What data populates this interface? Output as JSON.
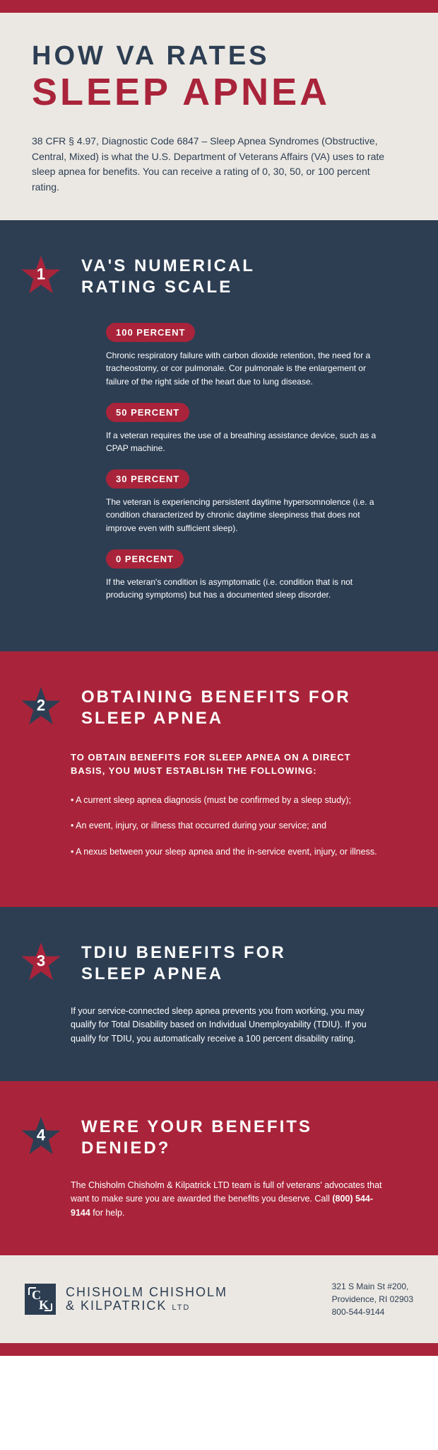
{
  "colors": {
    "navy": "#2d3e53",
    "red": "#a9243a",
    "cream": "#ebe8e3",
    "white": "#ffffff"
  },
  "typography": {
    "heading_family": "Arial",
    "body_family": "Century Gothic",
    "title1_size": 38,
    "title2_size": 54
  },
  "header": {
    "line1": "HOW VA RATES",
    "line2": "SLEEP APNEA",
    "intro": "38 CFR § 4.97, Diagnostic Code 6847 – Sleep Apnea Syndromes (Obstructive, Central, Mixed) is what the U.S. Department of Veterans Affairs (VA) uses to rate sleep apnea for benefits. You can receive a rating of 0, 30, 50, or 100 percent rating."
  },
  "sections": [
    {
      "num": "1",
      "bg": "navy",
      "star_color": "#a9243a",
      "title": "VA'S NUMERICAL RATING SCALE",
      "ratings": [
        {
          "label": "100 PERCENT",
          "desc": "Chronic respiratory failure with carbon dioxide retention, the need for a tracheostomy, or cor pulmonale. Cor pulmonale is the enlargement or failure of the right side of the heart due to lung disease."
        },
        {
          "label": "50 PERCENT",
          "desc": "If a veteran requires the use of a breathing assistance device, such as a CPAP machine."
        },
        {
          "label": "30 PERCENT",
          "desc": "The veteran is experiencing persistent daytime hypersomnolence (i.e. a condition characterized by chronic daytime sleepiness that does not improve even with sufficient sleep)."
        },
        {
          "label": "0 PERCENT",
          "desc": "If the veteran's condition is asymptomatic (i.e. condition that is not producing symptoms) but has a documented sleep disorder."
        }
      ]
    },
    {
      "num": "2",
      "bg": "red",
      "star_color": "#2d3e53",
      "title": "OBTAINING BENEFITS FOR SLEEP APNEA",
      "subhead": "TO OBTAIN BENEFITS FOR SLEEP APNEA ON A DIRECT BASIS, YOU MUST ESTABLISH THE FOLLOWING:",
      "bullets": [
        "•  A current sleep apnea diagnosis (must be confirmed by a sleep study);",
        "• An event, injury, or illness that occurred during your service; and",
        "• A nexus between your sleep apnea and the in-service event, injury, or illness."
      ]
    },
    {
      "num": "3",
      "bg": "navy",
      "star_color": "#a9243a",
      "title": "TDIU BENEFITS FOR SLEEP APNEA",
      "body": "If your service-connected sleep apnea prevents you from working, you may qualify for Total Disability based on Individual Unemployability (TDIU). If you qualify for TDIU, you automatically receive a 100 percent disability rating."
    },
    {
      "num": "4",
      "bg": "red",
      "star_color": "#2d3e53",
      "title": "WERE YOUR BENEFITS DENIED?",
      "body_html": "The Chisholm Chisholm & Kilpatrick LTD team is full of veterans' advocates that want to make sure you are awarded the benefits you deserve. Call <b>(800) 544-9144</b> for help."
    }
  ],
  "footer": {
    "firm_line1": "CHISHOLM CHISHOLM",
    "firm_line2": "& KILPATRICK",
    "firm_ltd": "LTD",
    "addr1": "321 S Main St #200,",
    "addr2": "Providence, RI 02903",
    "phone": "800-544-9144"
  }
}
